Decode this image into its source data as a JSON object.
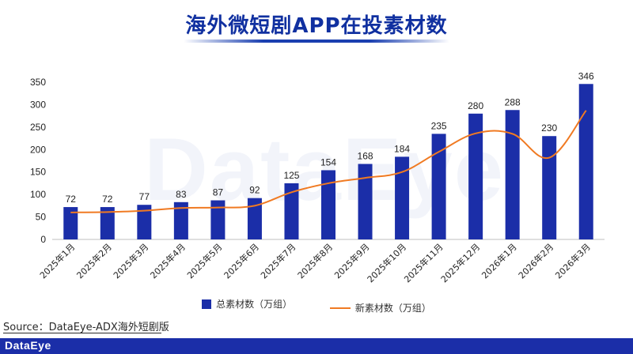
{
  "page": {
    "title": "海外微短剧APP在投素材数",
    "watermark": "DataEye",
    "source": "Source：DataEye-ADX海外短剧版",
    "footer_logo": "DataEye"
  },
  "colors": {
    "bar": "#1b2ea8",
    "line": "#f07a22",
    "title": "#1030a0"
  },
  "chart_data": {
    "type": "bar",
    "title": "海外微短剧APP在投素材数",
    "xlabel": "",
    "ylabel": "",
    "ylim": [
      0,
      350
    ],
    "yticks": [
      0,
      50,
      100,
      150,
      200,
      250,
      300,
      350
    ],
    "categories": [
      "2025年1月",
      "2025年2月",
      "2025年3月",
      "2025年4月",
      "2025年5月",
      "2025年6月",
      "2025年7月",
      "2025年8月",
      "2025年9月",
      "2025年10月",
      "2025年11月",
      "2025年12月",
      "2026年1月",
      "2026年2月",
      "2026年3月"
    ],
    "series": [
      {
        "name": "总素材数（万组）",
        "kind": "bar",
        "values": [
          72,
          72,
          77,
          83,
          87,
          92,
          125,
          154,
          168,
          184,
          235,
          280,
          288,
          230,
          346
        ]
      },
      {
        "name": "新素材数（万组）",
        "kind": "line",
        "values": [
          60,
          61,
          64,
          70,
          71,
          75,
          105,
          125,
          137,
          150,
          195,
          236,
          235,
          182,
          287
        ]
      }
    ],
    "legend": "bottom"
  }
}
